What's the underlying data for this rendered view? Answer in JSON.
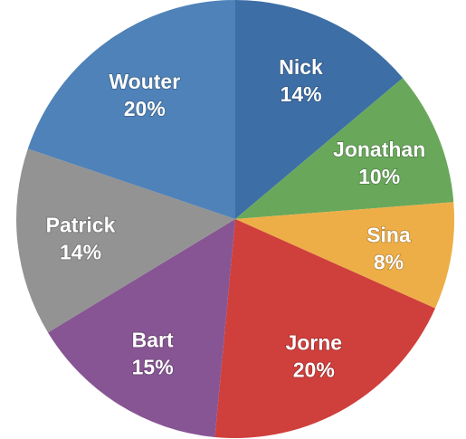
{
  "chart_data": {
    "type": "pie",
    "title": "",
    "start_angle_deg": 0,
    "direction": "clockwise",
    "slices": [
      {
        "label": "Nick",
        "value": 14,
        "value_label": "14%",
        "color": "#3d6ea6"
      },
      {
        "label": "Jonathan",
        "value": 10,
        "value_label": "10%",
        "color": "#69a85a"
      },
      {
        "label": "Sina",
        "value": 8,
        "value_label": "8%",
        "color": "#eeae47"
      },
      {
        "label": "Jorne",
        "value": 20,
        "value_label": "20%",
        "color": "#cf3f3c"
      },
      {
        "label": "Bart",
        "value": 15,
        "value_label": "15%",
        "color": "#875594"
      },
      {
        "label": "Patrick",
        "value": 14,
        "value_label": "14%",
        "color": "#939393"
      },
      {
        "label": "Wouter",
        "value": 20,
        "value_label": "20%",
        "color": "#4f82b8"
      }
    ]
  }
}
